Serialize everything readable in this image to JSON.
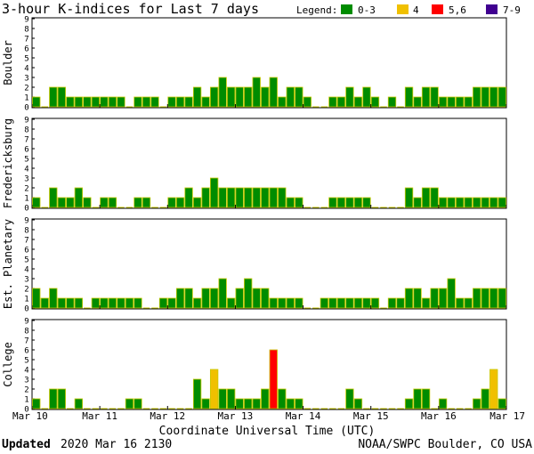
{
  "chart_data": {
    "type": "bar",
    "title": "3-hour K-indices for Last 7 days",
    "legend": {
      "label": "Legend:",
      "placement": "top-right",
      "entries": [
        {
          "label": "0-3",
          "color": "#008c00"
        },
        {
          "label": "4",
          "color": "#f0c000"
        },
        {
          "label": "5,6",
          "color": "#ff0000"
        },
        {
          "label": "7-9",
          "color": "#400090"
        }
      ]
    },
    "ylim": [
      0,
      9
    ],
    "y_ticks": [
      "0",
      "1",
      "2",
      "3",
      "4",
      "5",
      "6",
      "7",
      "8",
      "9"
    ],
    "x_ticks": [
      "Mar 10",
      "Mar 11",
      "Mar 12",
      "Mar 13",
      "Mar 14",
      "Mar 15",
      "Mar 16",
      "Mar 17"
    ],
    "xlabel": "Coordinate Universal Time (UTC)",
    "grid": false,
    "series": [
      {
        "name": "Boulder",
        "values": [
          1,
          0,
          2,
          2,
          1,
          1,
          1,
          1,
          1,
          1,
          1,
          0,
          1,
          1,
          1,
          0,
          1,
          1,
          1,
          2,
          1,
          2,
          3,
          2,
          2,
          2,
          3,
          2,
          3,
          1,
          2,
          2,
          1,
          0,
          0,
          1,
          1,
          2,
          1,
          2,
          1,
          0,
          1,
          0,
          2,
          1,
          2,
          2,
          1,
          1,
          1,
          1,
          2,
          2,
          2,
          2
        ]
      },
      {
        "name": "Fredericksburg",
        "values": [
          1,
          0,
          2,
          1,
          1,
          2,
          1,
          0,
          1,
          1,
          0,
          0,
          1,
          1,
          0,
          0,
          1,
          1,
          2,
          1,
          2,
          3,
          2,
          2,
          2,
          2,
          2,
          2,
          2,
          2,
          1,
          1,
          0,
          0,
          0,
          1,
          1,
          1,
          1,
          1,
          0,
          0,
          0,
          0,
          2,
          1,
          2,
          2,
          1,
          1,
          1,
          1,
          1,
          1,
          1,
          1
        ]
      },
      {
        "name": "Est. Planetary",
        "values": [
          2,
          1,
          2,
          1,
          1,
          1,
          0,
          1,
          1,
          1,
          1,
          1,
          1,
          0,
          0,
          1,
          1,
          2,
          2,
          1,
          2,
          2,
          3,
          1,
          2,
          3,
          2,
          2,
          1,
          1,
          1,
          1,
          0,
          0,
          1,
          1,
          1,
          1,
          1,
          1,
          1,
          0,
          1,
          1,
          2,
          2,
          1,
          2,
          2,
          3,
          1,
          1,
          2,
          2,
          2,
          2
        ]
      },
      {
        "name": "College",
        "values": [
          1,
          0,
          2,
          2,
          0,
          1,
          0,
          0,
          0,
          0,
          0,
          1,
          1,
          0,
          0,
          0,
          0,
          0,
          0,
          3,
          1,
          4,
          2,
          2,
          1,
          1,
          1,
          2,
          6,
          2,
          1,
          1,
          0,
          0,
          0,
          0,
          0,
          2,
          1,
          0,
          0,
          0,
          0,
          0,
          1,
          2,
          2,
          0,
          1,
          0,
          0,
          0,
          1,
          2,
          4,
          1
        ]
      }
    ]
  },
  "footer": {
    "updated_label": "Updated",
    "updated_value": "2020 Mar 16 2130",
    "credit": "NOAA/SWPC Boulder, CO USA"
  }
}
